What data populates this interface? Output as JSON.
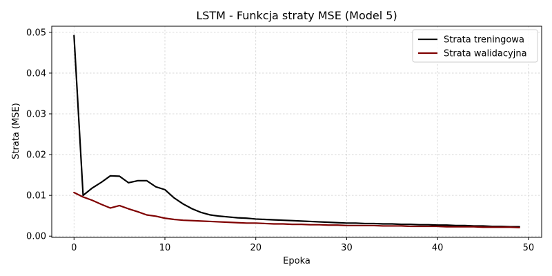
{
  "chart_data": {
    "type": "line",
    "title": "LSTM - Funkcja straty MSE (Model 5)",
    "xlabel": "Epoka",
    "ylabel": "Strata (MSE)",
    "xlim": [
      -2.45,
      51.45
    ],
    "ylim": [
      -0.0003,
      0.0515
    ],
    "xticks": [
      0,
      10,
      20,
      30,
      40,
      50
    ],
    "yticks": [
      0.0,
      0.01,
      0.02,
      0.03,
      0.04,
      0.05
    ],
    "ytick_labels": [
      "0.00",
      "0.01",
      "0.02",
      "0.03",
      "0.04",
      "0.05"
    ],
    "grid": true,
    "legend_position": "top-right",
    "x": [
      0,
      1,
      2,
      3,
      4,
      5,
      6,
      7,
      8,
      9,
      10,
      11,
      12,
      13,
      14,
      15,
      16,
      17,
      18,
      19,
      20,
      21,
      22,
      23,
      24,
      25,
      26,
      27,
      28,
      29,
      30,
      31,
      32,
      33,
      34,
      35,
      36,
      37,
      38,
      39,
      40,
      41,
      42,
      43,
      44,
      45,
      46,
      47,
      48,
      49
    ],
    "series": [
      {
        "name": "Strata treningowa",
        "color": "#000000",
        "values": [
          0.0492,
          0.01,
          0.0118,
          0.0132,
          0.0148,
          0.0147,
          0.0131,
          0.0136,
          0.0136,
          0.0121,
          0.0114,
          0.0094,
          0.0079,
          0.0067,
          0.0058,
          0.0052,
          0.0049,
          0.0047,
          0.0045,
          0.0044,
          0.0042,
          0.0041,
          0.004,
          0.0039,
          0.0038,
          0.0037,
          0.0036,
          0.0035,
          0.0034,
          0.0033,
          0.0032,
          0.0032,
          0.0031,
          0.0031,
          0.003,
          0.003,
          0.0029,
          0.0029,
          0.0028,
          0.0028,
          0.0027,
          0.0027,
          0.0026,
          0.0026,
          0.0025,
          0.0025,
          0.0024,
          0.0024,
          0.0023,
          0.0023
        ]
      },
      {
        "name": "Strata walidacyjna",
        "color": "#7f0000",
        "values": [
          0.0107,
          0.0096,
          0.0088,
          0.0078,
          0.0069,
          0.0075,
          0.0067,
          0.006,
          0.0052,
          0.0049,
          0.0044,
          0.0041,
          0.0039,
          0.0038,
          0.0037,
          0.0036,
          0.0035,
          0.0034,
          0.0033,
          0.0032,
          0.0032,
          0.0031,
          0.003,
          0.003,
          0.0029,
          0.0029,
          0.0028,
          0.0028,
          0.0027,
          0.0027,
          0.0026,
          0.0026,
          0.0026,
          0.0026,
          0.0025,
          0.0025,
          0.0025,
          0.0024,
          0.0024,
          0.0024,
          0.0024,
          0.0023,
          0.0023,
          0.0023,
          0.0023,
          0.0022,
          0.0022,
          0.0022,
          0.0022,
          0.0021
        ]
      }
    ]
  }
}
